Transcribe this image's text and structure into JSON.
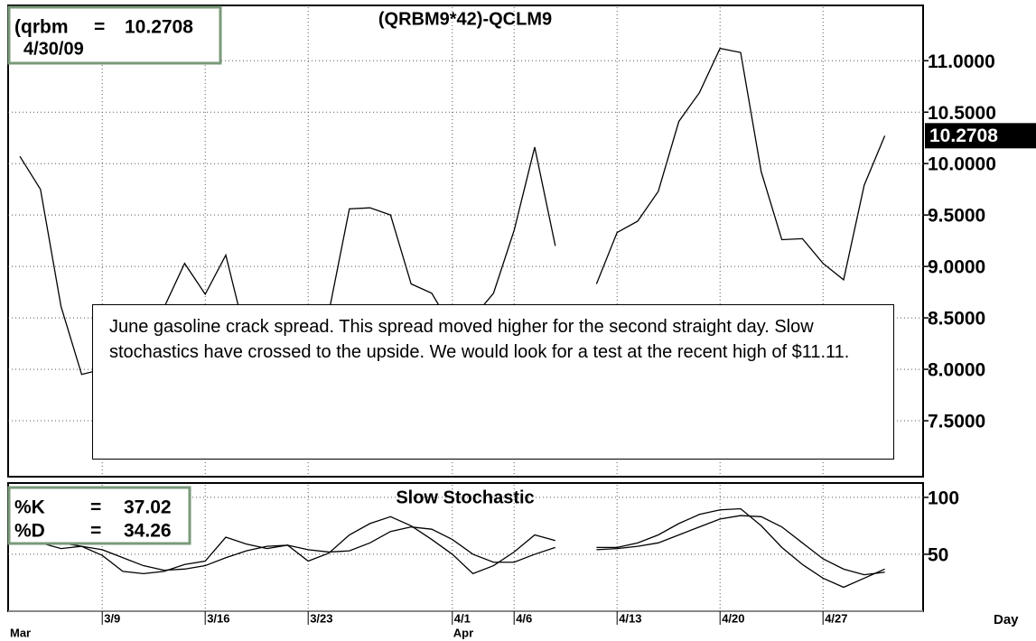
{
  "chart_data": [
    {
      "type": "line",
      "title": "(QRBM9*42)-QCLM9",
      "readout_label": "(qrbm",
      "readout_symbol": "=",
      "readout_date": "4/30/09",
      "annotation": "June gasoline crack spread. This spread moved higher for the second straight day. Slow stochastics have crossed to the upside. We would look for a test at the recent high of $11.11.",
      "series": [
        {
          "name": "(QRBM9*42)-QCLM9",
          "color": "#000000",
          "values": [
            10.07,
            9.75,
            8.61,
            7.95,
            8.0,
            8.4,
            8.5,
            8.6,
            9.03,
            8.73,
            9.11,
            8.3,
            8.1,
            8.2,
            8.4,
            8.55,
            9.56,
            9.57,
            9.5,
            8.83,
            8.74,
            8.4,
            8.5,
            8.74,
            9.35,
            10.16,
            9.2,
            null,
            8.83,
            9.33,
            9.44,
            9.73,
            10.41,
            10.69,
            11.12,
            11.08,
            9.92,
            9.26,
            9.27,
            9.03,
            8.87,
            9.79,
            10.2708
          ]
        }
      ],
      "ylim": [
        6.965,
        11.52
      ],
      "yticks": [
        {
          "value": 7.5,
          "label": "7.5000"
        },
        {
          "value": 8,
          "label": "8.0000"
        },
        {
          "value": 8.5,
          "label": "8.5000"
        },
        {
          "value": 9,
          "label": "9.0000"
        },
        {
          "value": 9.5,
          "label": "9.5000"
        },
        {
          "value": 10,
          "label": "10.0000"
        },
        {
          "value": 10.5,
          "label": "10.5000"
        },
        {
          "value": 11,
          "label": "11.0000"
        }
      ],
      "grid": true
    },
    {
      "type": "line",
      "title": "Slow  Stochastic",
      "readout_symbol": "=",
      "series": [
        {
          "name": "%K",
          "color": "#000000",
          "values": [
            70,
            60,
            55,
            57,
            49,
            35,
            33,
            35,
            41,
            44,
            65,
            59,
            55,
            58,
            44,
            51,
            67,
            77,
            83,
            75,
            63,
            50,
            33,
            40,
            52,
            67,
            62,
            null,
            56,
            56,
            60,
            67,
            77,
            85,
            89,
            90,
            75,
            56,
            41,
            29,
            21,
            29,
            37.02
          ]
        },
        {
          "name": "%D",
          "color": "#000000",
          "values": [
            72,
            66,
            60,
            57,
            54,
            47,
            40,
            36,
            37,
            40,
            47,
            53,
            57,
            58,
            54,
            52,
            53,
            60,
            70,
            74,
            72,
            63,
            50,
            43,
            43,
            50,
            56,
            null,
            54,
            55,
            57,
            60,
            67,
            74,
            81,
            84,
            83,
            74,
            60,
            46,
            37,
            32,
            34.26
          ]
        }
      ],
      "ylim": [
        0,
        111
      ],
      "yticks": [
        50,
        100
      ],
      "grid": true,
      "categories": [
        null,
        null,
        null,
        null,
        "3/9",
        null,
        null,
        null,
        null,
        "3/16",
        null,
        null,
        null,
        null,
        "3/23",
        null,
        null,
        null,
        null,
        null,
        null,
        "4/1",
        null,
        null,
        "4/6",
        null,
        null,
        null,
        null,
        "4/13",
        null,
        null,
        null,
        null,
        "4/20",
        null,
        null,
        null,
        null,
        "4/27",
        null,
        null,
        null
      ],
      "months": [
        "Mar",
        null,
        null,
        null,
        null,
        null,
        null,
        null,
        null,
        null,
        null,
        null,
        null,
        null,
        null,
        null,
        null,
        null,
        null,
        null,
        null,
        "Apr",
        null,
        null,
        null,
        null,
        null,
        null,
        null,
        null,
        null,
        null,
        null,
        null,
        null,
        null,
        null,
        null,
        null,
        null,
        null,
        null,
        null
      ],
      "x_label": "Day"
    }
  ]
}
